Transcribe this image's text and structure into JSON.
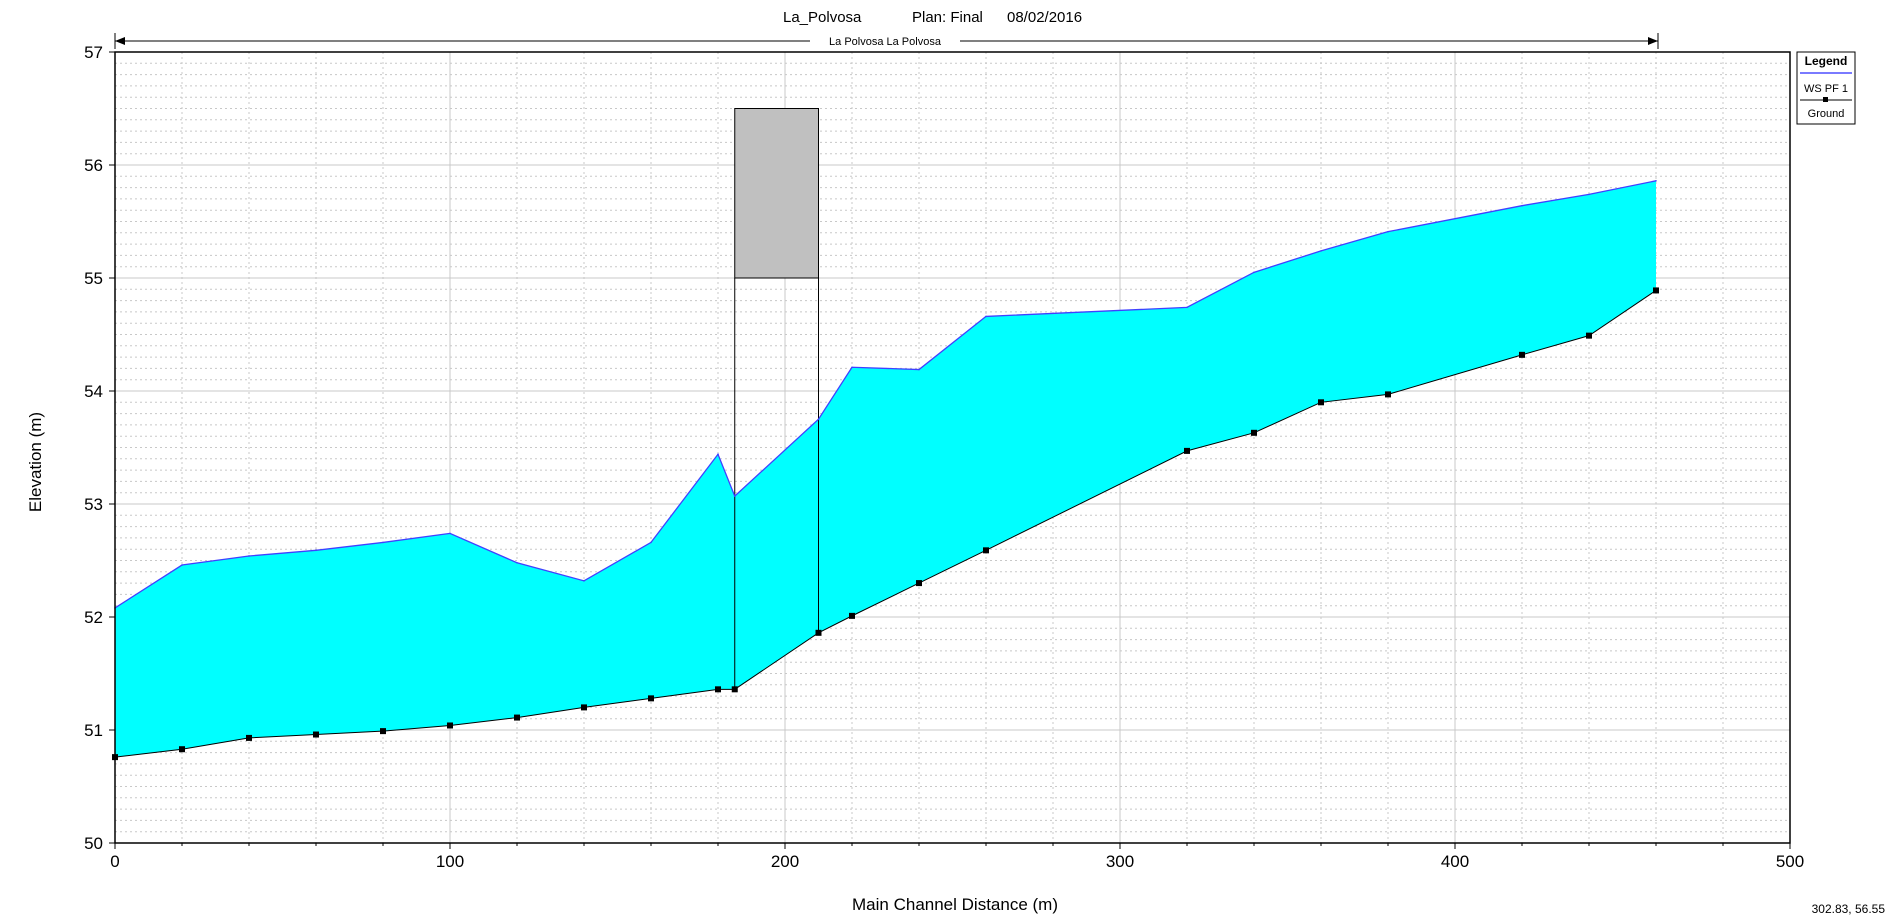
{
  "header": {
    "project": "La_Polvosa",
    "plan": "Plan: Final",
    "date": "08/02/2016",
    "reach_label": "La Polvosa La Polvosa"
  },
  "status": {
    "cursor_readout": "302.83, 56.55"
  },
  "legend": {
    "title": "Legend",
    "items": [
      {
        "label": "WS  PF 1",
        "color": "#2b2bff",
        "style": "line"
      },
      {
        "label": "Ground",
        "color": "#000000",
        "style": "line-marker"
      }
    ]
  },
  "colors": {
    "water_fill": "#00ffff",
    "water_surface": "#4040ff",
    "ground": "#000000",
    "structure_fill": "#c0c0c0"
  },
  "chart_data": {
    "type": "line",
    "title": "La_Polvosa      Plan: Final      08/02/2016",
    "xlabel": "Main Channel Distance (m)",
    "ylabel": "Elevation (m)",
    "xlim": [
      0,
      500
    ],
    "ylim": [
      50,
      57
    ],
    "xticks": [
      0,
      100,
      200,
      300,
      400,
      500
    ],
    "yticks": [
      50,
      51,
      52,
      53,
      54,
      55,
      56,
      57
    ],
    "grid": true,
    "legend_position": "top-right",
    "reach_extent": [
      0,
      460
    ],
    "series": [
      {
        "name": "WS  PF 1",
        "x": [
          0,
          20,
          40,
          60,
          80,
          100,
          120,
          140,
          160,
          180,
          185,
          210,
          220,
          240,
          260,
          320,
          340,
          360,
          380,
          420,
          440,
          460
        ],
        "y": [
          52.08,
          52.46,
          52.54,
          52.59,
          52.66,
          52.74,
          52.48,
          52.32,
          52.66,
          53.44,
          53.07,
          53.75,
          54.21,
          54.19,
          54.66,
          54.74,
          55.05,
          55.24,
          55.41,
          55.64,
          55.74,
          55.86
        ]
      },
      {
        "name": "Ground",
        "x": [
          0,
          20,
          40,
          60,
          80,
          100,
          120,
          140,
          160,
          180,
          185,
          210,
          220,
          240,
          260,
          320,
          340,
          360,
          380,
          420,
          440,
          460
        ],
        "y": [
          50.76,
          50.83,
          50.93,
          50.96,
          50.99,
          51.04,
          51.11,
          51.2,
          51.28,
          51.36,
          51.36,
          51.86,
          52.01,
          52.3,
          52.59,
          53.47,
          53.63,
          53.9,
          53.97,
          54.32,
          54.49,
          54.89
        ]
      }
    ],
    "structure": {
      "x_start": 185,
      "x_end": 210,
      "top": 56.5,
      "low_chord": 55.0
    }
  }
}
